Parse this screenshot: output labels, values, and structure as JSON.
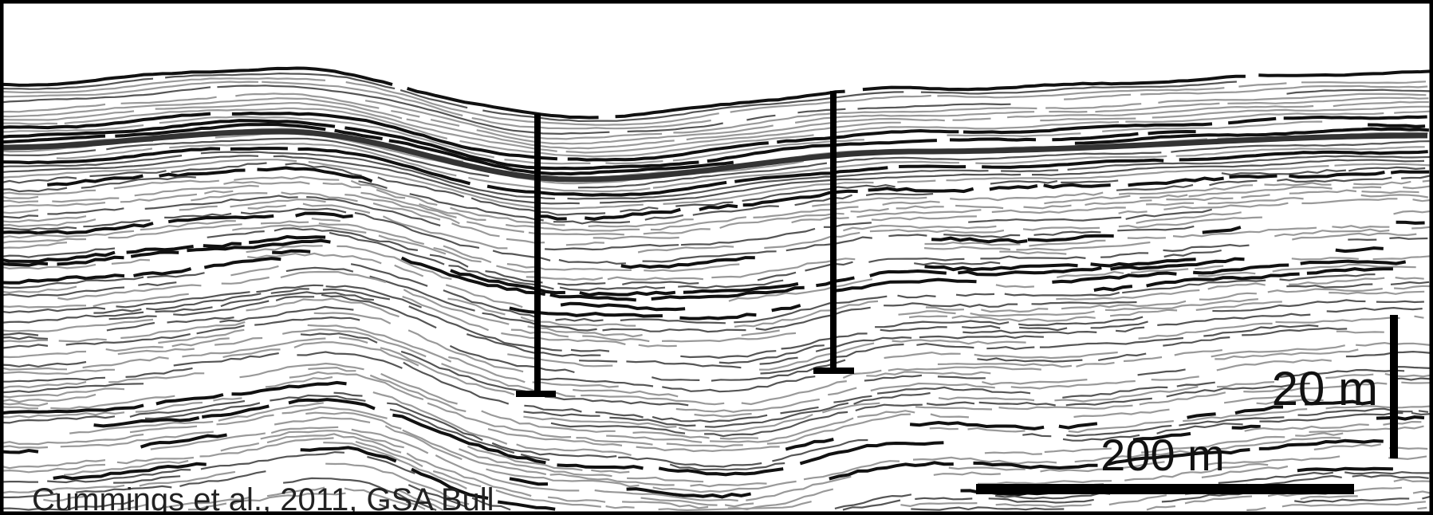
{
  "scale_bars": {
    "vertical": "20 m",
    "horizontal": "200 m"
  },
  "credit": "Cummings et al., 2011, GSA Bull"
}
